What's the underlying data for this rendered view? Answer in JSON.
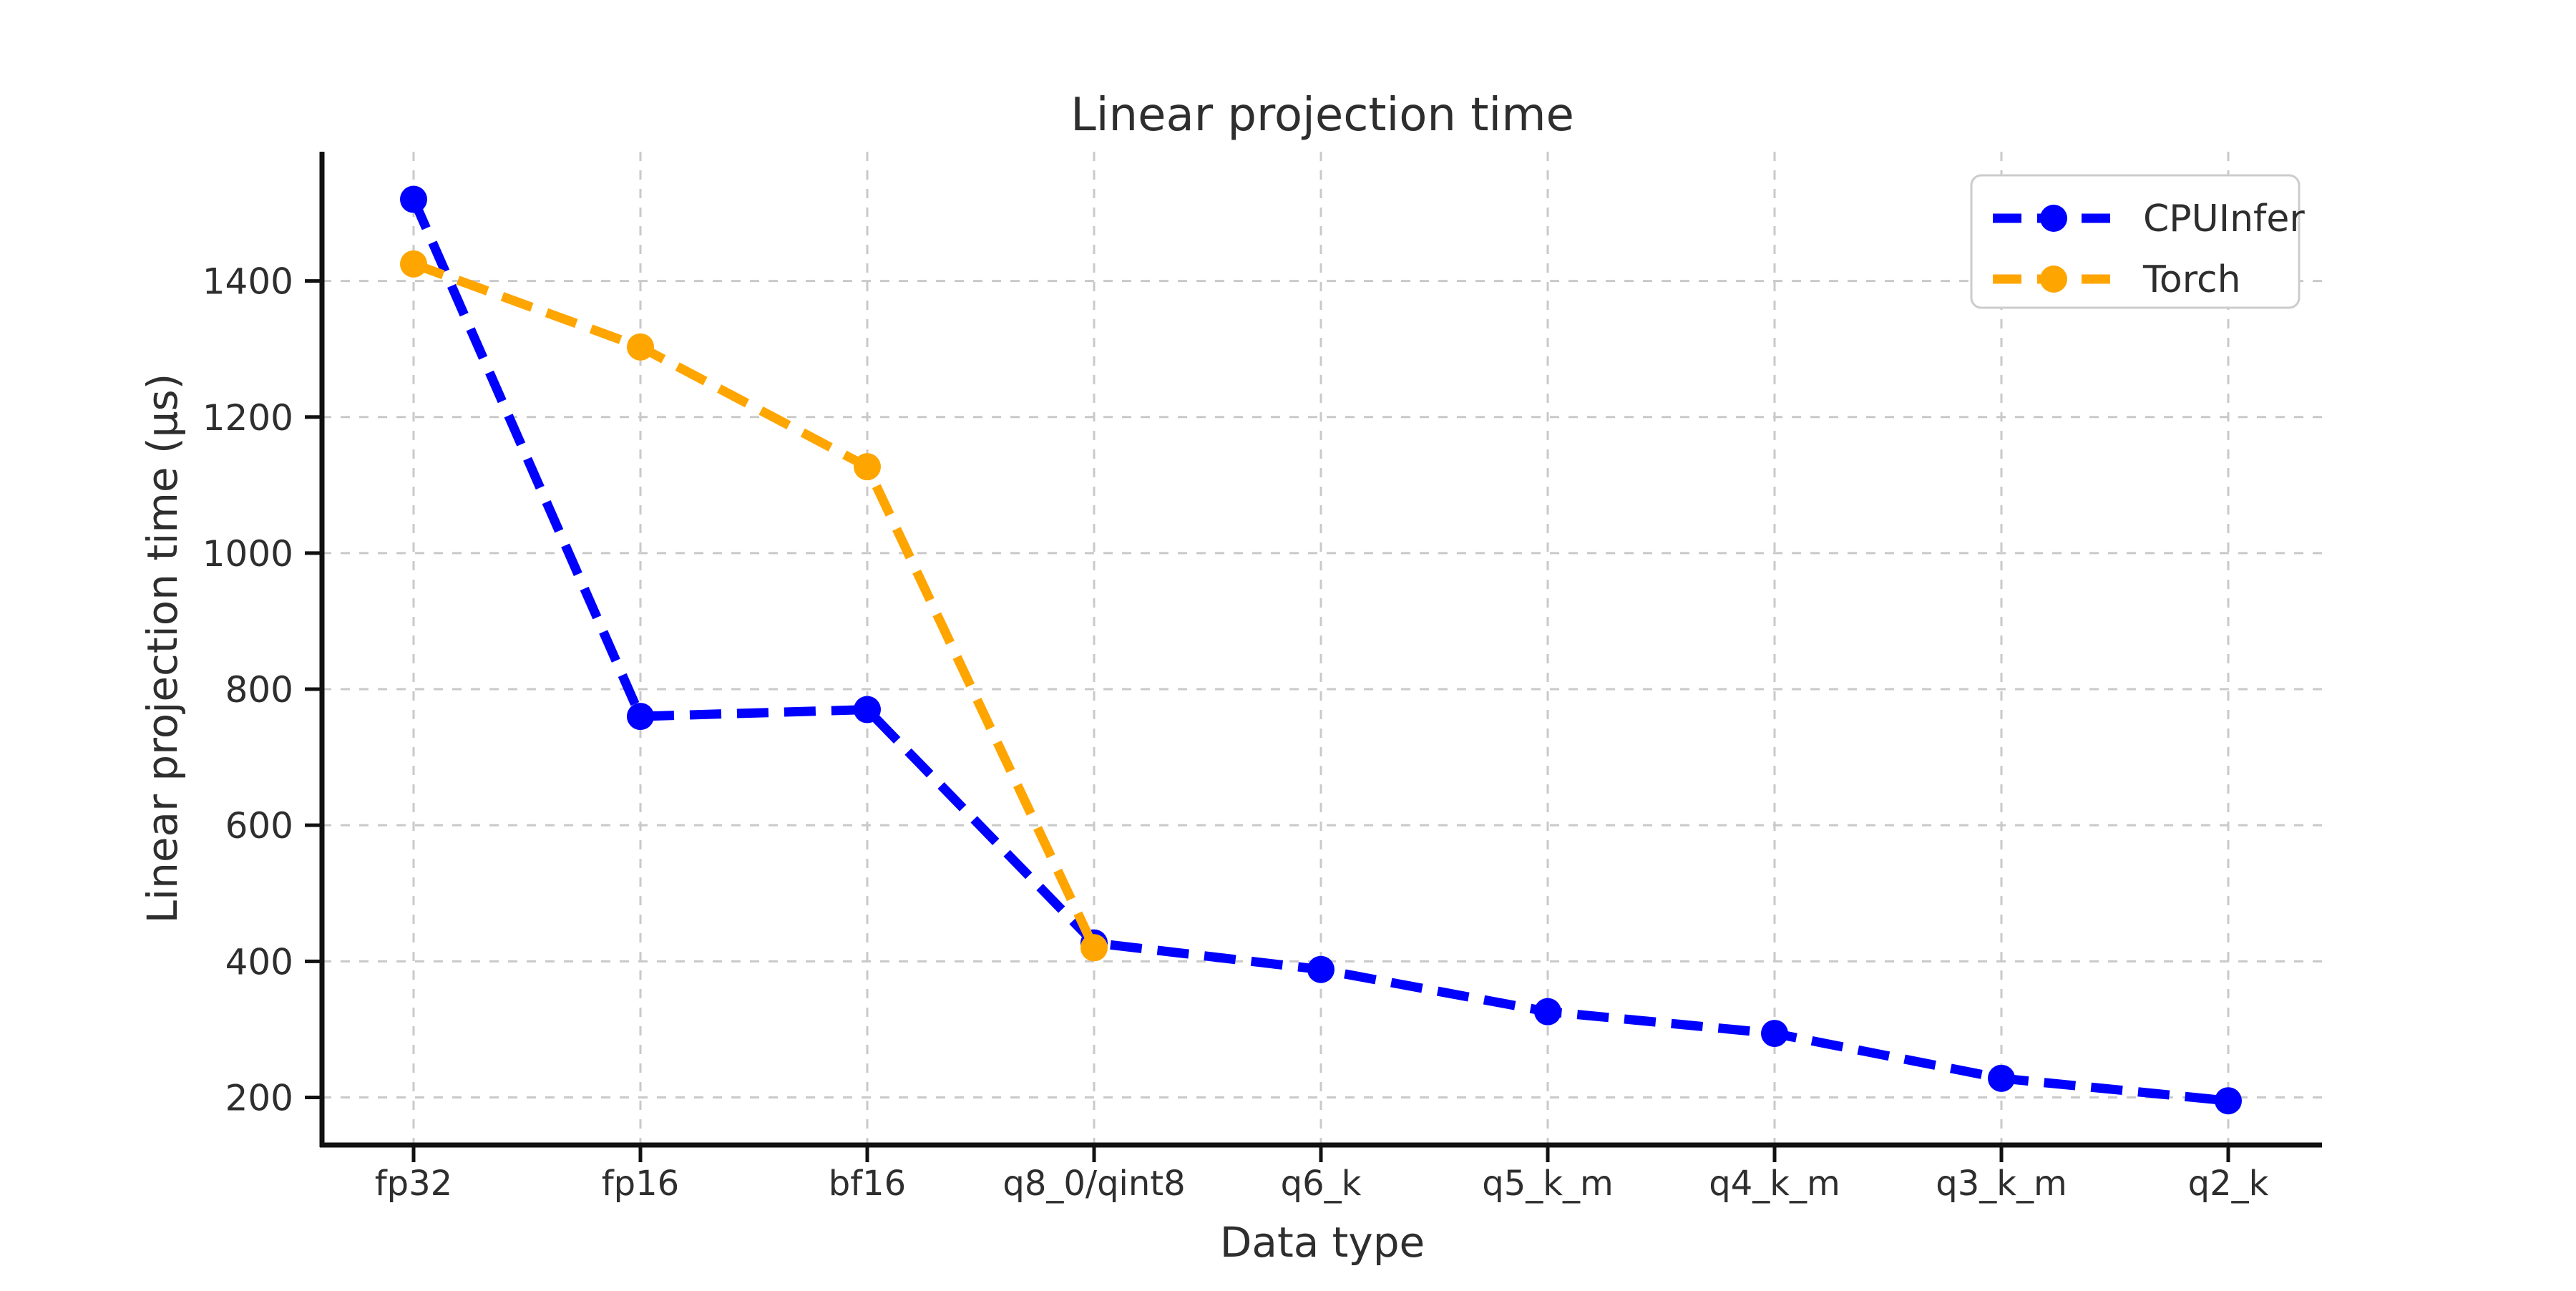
{
  "chart_data": {
    "type": "line",
    "title": "Linear projection time",
    "xlabel": "Data type",
    "ylabel": "Linear projection time (μs)",
    "categories": [
      "fp32",
      "fp16",
      "bf16",
      "q8_0/qint8",
      "q6_k",
      "q5_k_m",
      "q4_k_m",
      "q3_k_m",
      "q2_k"
    ],
    "series": [
      {
        "name": "CPUInfer",
        "color": "#0000ff",
        "line_style": "dashed",
        "marker": "circle",
        "values": [
          1520,
          760,
          770,
          427,
          388,
          326,
          294,
          228,
          195
        ]
      },
      {
        "name": "Torch",
        "color": "#ffa500",
        "line_style": "dashed",
        "marker": "circle",
        "values": [
          1425,
          1303,
          1127,
          420
        ]
      }
    ],
    "y_ticks": [
      200,
      400,
      600,
      800,
      1000,
      1200,
      1400
    ],
    "ylim": [
      130,
      1590
    ],
    "grid": true,
    "grid_style": "dashed",
    "legend_position": "upper right",
    "legend_labels": [
      "CPUInfer",
      "Torch"
    ]
  },
  "colors": {
    "background": "#ffffff",
    "grid": "#c9c9c9",
    "spine": "#111111",
    "text": "#2e2e2e",
    "legend_border": "#cccccc",
    "cpuinfer_blue": "#0000ff",
    "torch_orange": "#ffa500"
  }
}
